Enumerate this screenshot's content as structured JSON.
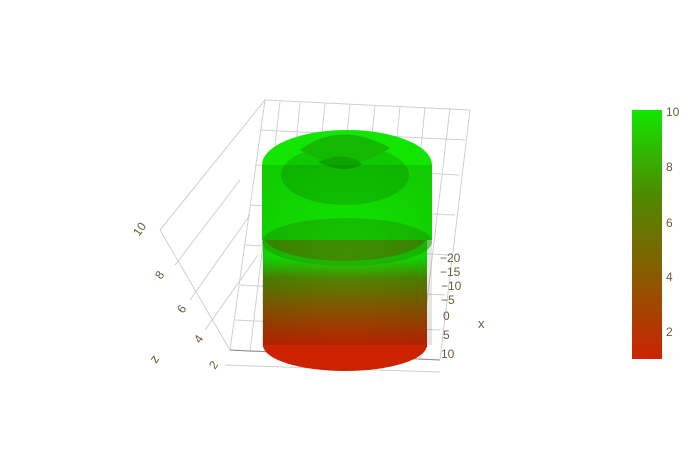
{
  "chart_data": {
    "type": "surface",
    "title": "",
    "colorscale": {
      "min": 1,
      "max": 10,
      "colors": [
        "#cc2200",
        "#8a5a00",
        "#4e8a00",
        "#12e600"
      ],
      "tick_values": [
        2,
        4,
        6,
        8,
        10
      ],
      "tick_labels": [
        "2",
        "4",
        "6",
        "8",
        "10"
      ]
    },
    "axes": {
      "x": {
        "title": "x",
        "tick_labels": [
          "−20",
          "−15",
          "−10",
          "−5",
          "0",
          "5",
          "10"
        ]
      },
      "z": {
        "title": "z",
        "tick_labels": [
          "2",
          "4",
          "6",
          "8",
          "10"
        ]
      }
    },
    "grid": true,
    "legend_placement": "right",
    "surface_description": "stacked cylindrical surface with a flat top cap",
    "surface": {
      "z_bottom": 1,
      "z_top": 10
    }
  }
}
